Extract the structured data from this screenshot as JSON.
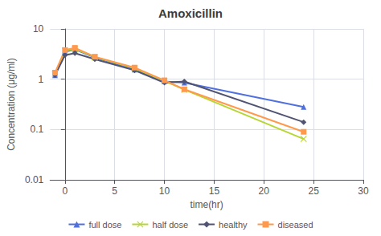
{
  "chart_data": {
    "type": "line",
    "title": "Amoxicillin",
    "xlabel": "time(hr)",
    "ylabel": "Concentration (μg/ml)",
    "x": [
      -1,
      0,
      1,
      3,
      7,
      10,
      12,
      24
    ],
    "series": [
      {
        "name": "full dose",
        "marker": "triangle",
        "values": [
          1.2,
          3.5,
          3.9,
          2.7,
          1.55,
          0.9,
          0.85,
          0.28
        ]
      },
      {
        "name": "half dose",
        "marker": "x",
        "values": [
          1.25,
          3.7,
          4.0,
          2.75,
          1.65,
          0.92,
          0.62,
          0.065
        ]
      },
      {
        "name": "healthy",
        "marker": "diamond",
        "values": [
          1.2,
          3.0,
          3.3,
          2.5,
          1.5,
          0.85,
          0.9,
          0.14
        ]
      },
      {
        "name": "diseased",
        "marker": "square",
        "values": [
          1.35,
          3.8,
          4.2,
          2.8,
          1.7,
          0.95,
          0.63,
          0.09
        ]
      }
    ],
    "xlim": [
      -1.5,
      30
    ],
    "xticks": [
      0,
      5,
      10,
      15,
      20,
      25,
      30
    ],
    "ylim": [
      0.01,
      10
    ],
    "yticks": [
      0.01,
      0.1,
      1,
      10
    ],
    "log": "y",
    "grid": true,
    "legend": "bottom"
  }
}
